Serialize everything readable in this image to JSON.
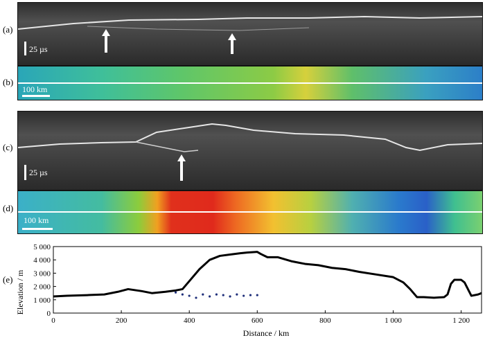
{
  "panels": {
    "a": {
      "label": "(a)",
      "scale": "25 µs"
    },
    "b": {
      "label": "(b)",
      "scale": "100 km"
    },
    "c": {
      "label": "(c)",
      "scale": "25 µs"
    },
    "d": {
      "label": "(d)",
      "scale": "100 km"
    },
    "e": {
      "label": "(e)"
    }
  },
  "colors": {
    "profile": "#000000",
    "subsurface": "#1f2f7a"
  },
  "chart_data": {
    "type": "line",
    "xlabel": "Distance / km",
    "ylabel": "Elevation / m",
    "xlim": [
      0,
      1260
    ],
    "ylim": [
      0,
      5000
    ],
    "xticks": [
      0,
      200,
      400,
      600,
      800,
      1000,
      1200
    ],
    "xtick_labels": [
      "0",
      "200",
      "400",
      "600",
      "800",
      "1 000",
      "1 200"
    ],
    "yticks": [
      0,
      1000,
      2000,
      3000,
      4000,
      5000
    ],
    "ytick_labels": [
      "0",
      "1 000",
      "2 000",
      "3 000",
      "4 000",
      "5 000"
    ],
    "series": [
      {
        "style": "line",
        "x": [
          0,
          40,
          100,
          150,
          190,
          220,
          260,
          290,
          330,
          360,
          380,
          400,
          430,
          460,
          490,
          520,
          550,
          570,
          600,
          610,
          630,
          660,
          700,
          740,
          780,
          820,
          860,
          900,
          950,
          1000,
          1030,
          1050,
          1070,
          1090,
          1120,
          1150,
          1160,
          1170,
          1180,
          1200,
          1210,
          1230,
          1250,
          1260
        ],
        "y": [
          1250,
          1300,
          1350,
          1400,
          1600,
          1800,
          1650,
          1500,
          1600,
          1700,
          1800,
          2400,
          3300,
          4000,
          4300,
          4400,
          4500,
          4550,
          4600,
          4450,
          4200,
          4200,
          3900,
          3700,
          3600,
          3400,
          3300,
          3100,
          2900,
          2700,
          2300,
          1800,
          1200,
          1200,
          1150,
          1200,
          1400,
          2200,
          2500,
          2500,
          2300,
          1300,
          1400,
          1500
        ]
      },
      {
        "style": "dots",
        "x": [
          360,
          380,
          400,
          420,
          440,
          460,
          480,
          500,
          520,
          540,
          560,
          580,
          600
        ],
        "y": [
          1550,
          1400,
          1300,
          1150,
          1400,
          1250,
          1400,
          1350,
          1250,
          1400,
          1300,
          1350,
          1350
        ]
      }
    ]
  }
}
